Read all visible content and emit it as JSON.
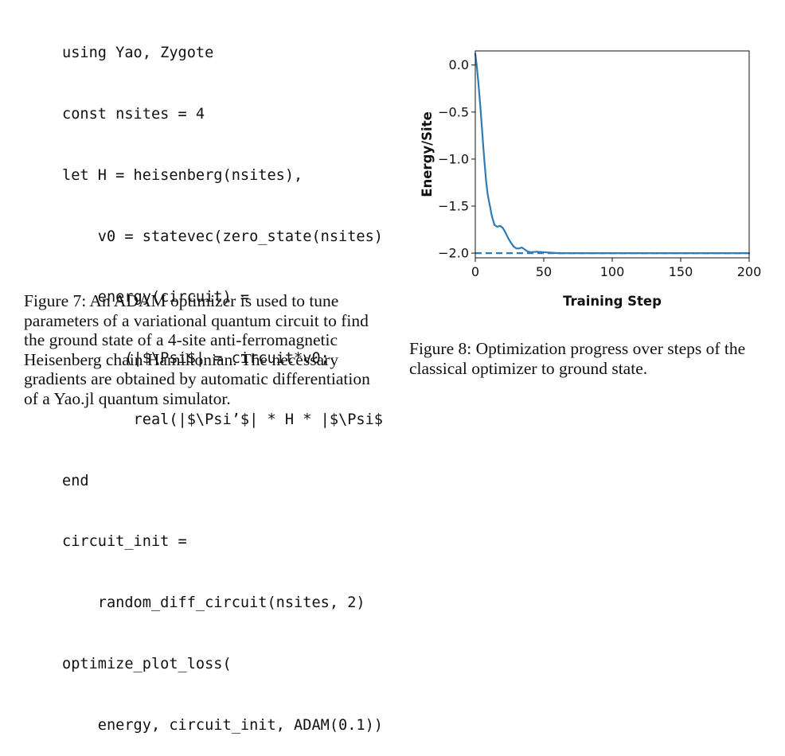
{
  "code_lines": [
    "using Yao, Zygote",
    "const nsites = 4",
    "let H = heisenberg(nsites),",
    "    v0 = statevec(zero_state(nsites)",
    "    energy(circuit) =",
    "       (|$\\Psi$| = circuit*v0;",
    "        real(|$\\Psi’$| * H * |$\\Psi$",
    "end",
    "circuit_init =",
    "    random_diff_circuit(nsites, 2)",
    "optimize_plot_loss(",
    "    energy, circuit_init, ADAM(0.1))"
  ],
  "caption_fig7": "Figure 7: An ADAM optimizer is used to tune parameters of a variational quantum circuit to find the ground state of a 4-site anti-ferromagnetic Heisenberg chain Hamiltonian. The necessary gradients are obtained by automatic differentiation of a Yao.jl quantum simulator.",
  "caption_fig8": "Figure 8: Optimization progress over steps of the classical optimizer to ground state.",
  "chart_data": {
    "type": "line",
    "xlabel": "Training Step",
    "ylabel": "Energy/Site",
    "xlim": [
      0,
      200
    ],
    "ylim": [
      -2.05,
      0.15
    ],
    "xticks": [
      0,
      50,
      100,
      150,
      200
    ],
    "xtick_labels": [
      "0",
      "50",
      "100",
      "150",
      "200"
    ],
    "yticks": [
      0.0,
      -0.5,
      -1.0,
      -1.5,
      -2.0
    ],
    "ytick_labels": [
      "0.0",
      "−0.5",
      "−1.0",
      "−1.5",
      "−2.0"
    ],
    "grid": false,
    "line_color": "#2f7bb6",
    "series": [
      {
        "style": "solid",
        "x": [
          0,
          1,
          2,
          3,
          4,
          5,
          6,
          7,
          8,
          9,
          10,
          11,
          12,
          14,
          16,
          18,
          20,
          22,
          24,
          26,
          28,
          30,
          32,
          34,
          36,
          38,
          40,
          45,
          50,
          55,
          60,
          70,
          80,
          100,
          120,
          150,
          200
        ],
        "y": [
          0.12,
          0.0,
          -0.15,
          -0.32,
          -0.5,
          -0.7,
          -0.9,
          -1.08,
          -1.25,
          -1.37,
          -1.45,
          -1.52,
          -1.6,
          -1.7,
          -1.72,
          -1.71,
          -1.73,
          -1.78,
          -1.84,
          -1.89,
          -1.93,
          -1.95,
          -1.95,
          -1.94,
          -1.96,
          -1.98,
          -1.99,
          -1.985,
          -1.99,
          -1.995,
          -2.0,
          -2.0,
          -2.0,
          -2.0,
          -2.0,
          -2.0,
          -2.0
        ]
      },
      {
        "style": "dashed",
        "x": [
          0,
          200
        ],
        "y": [
          -2.0,
          -2.0
        ]
      }
    ]
  }
}
